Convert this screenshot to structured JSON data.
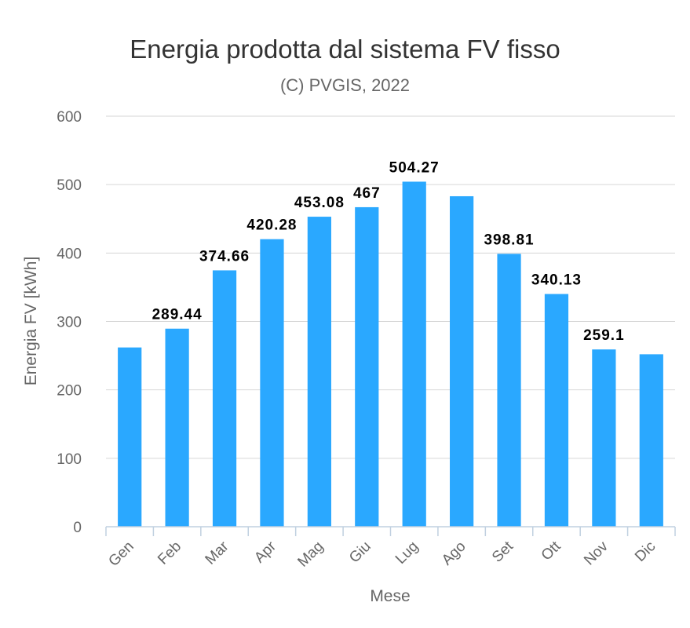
{
  "chart_data": {
    "type": "bar",
    "title": "Energia prodotta dal sistema FV fisso",
    "subtitle": "(C) PVGIS, 2022",
    "xlabel": "Mese",
    "ylabel": "Energia FV [kWh]",
    "ylim": [
      0,
      600
    ],
    "yticks": [
      0,
      100,
      200,
      300,
      400,
      500,
      600
    ],
    "grid": true,
    "categories": [
      "Gen",
      "Feb",
      "Mar",
      "Apr",
      "Mag",
      "Giu",
      "Lug",
      "Ago",
      "Set",
      "Ott",
      "Nov",
      "Dic"
    ],
    "series": [
      {
        "values": [
          262,
          289.44,
          374.66,
          420.28,
          453.08,
          467,
          504.27,
          483,
          398.81,
          340.13,
          259.1,
          252
        ],
        "data_labels": [
          "",
          "289.44",
          "374.66",
          "420.28",
          "453.08",
          "467",
          "504.27",
          "",
          "398.81",
          "340.13",
          "259.1",
          ""
        ]
      }
    ],
    "colors": {
      "bar": "#2aa8ff",
      "grid": "#d6d6d6",
      "axis": "#c0d0e0",
      "text": "#666666",
      "label": "#000000"
    }
  }
}
